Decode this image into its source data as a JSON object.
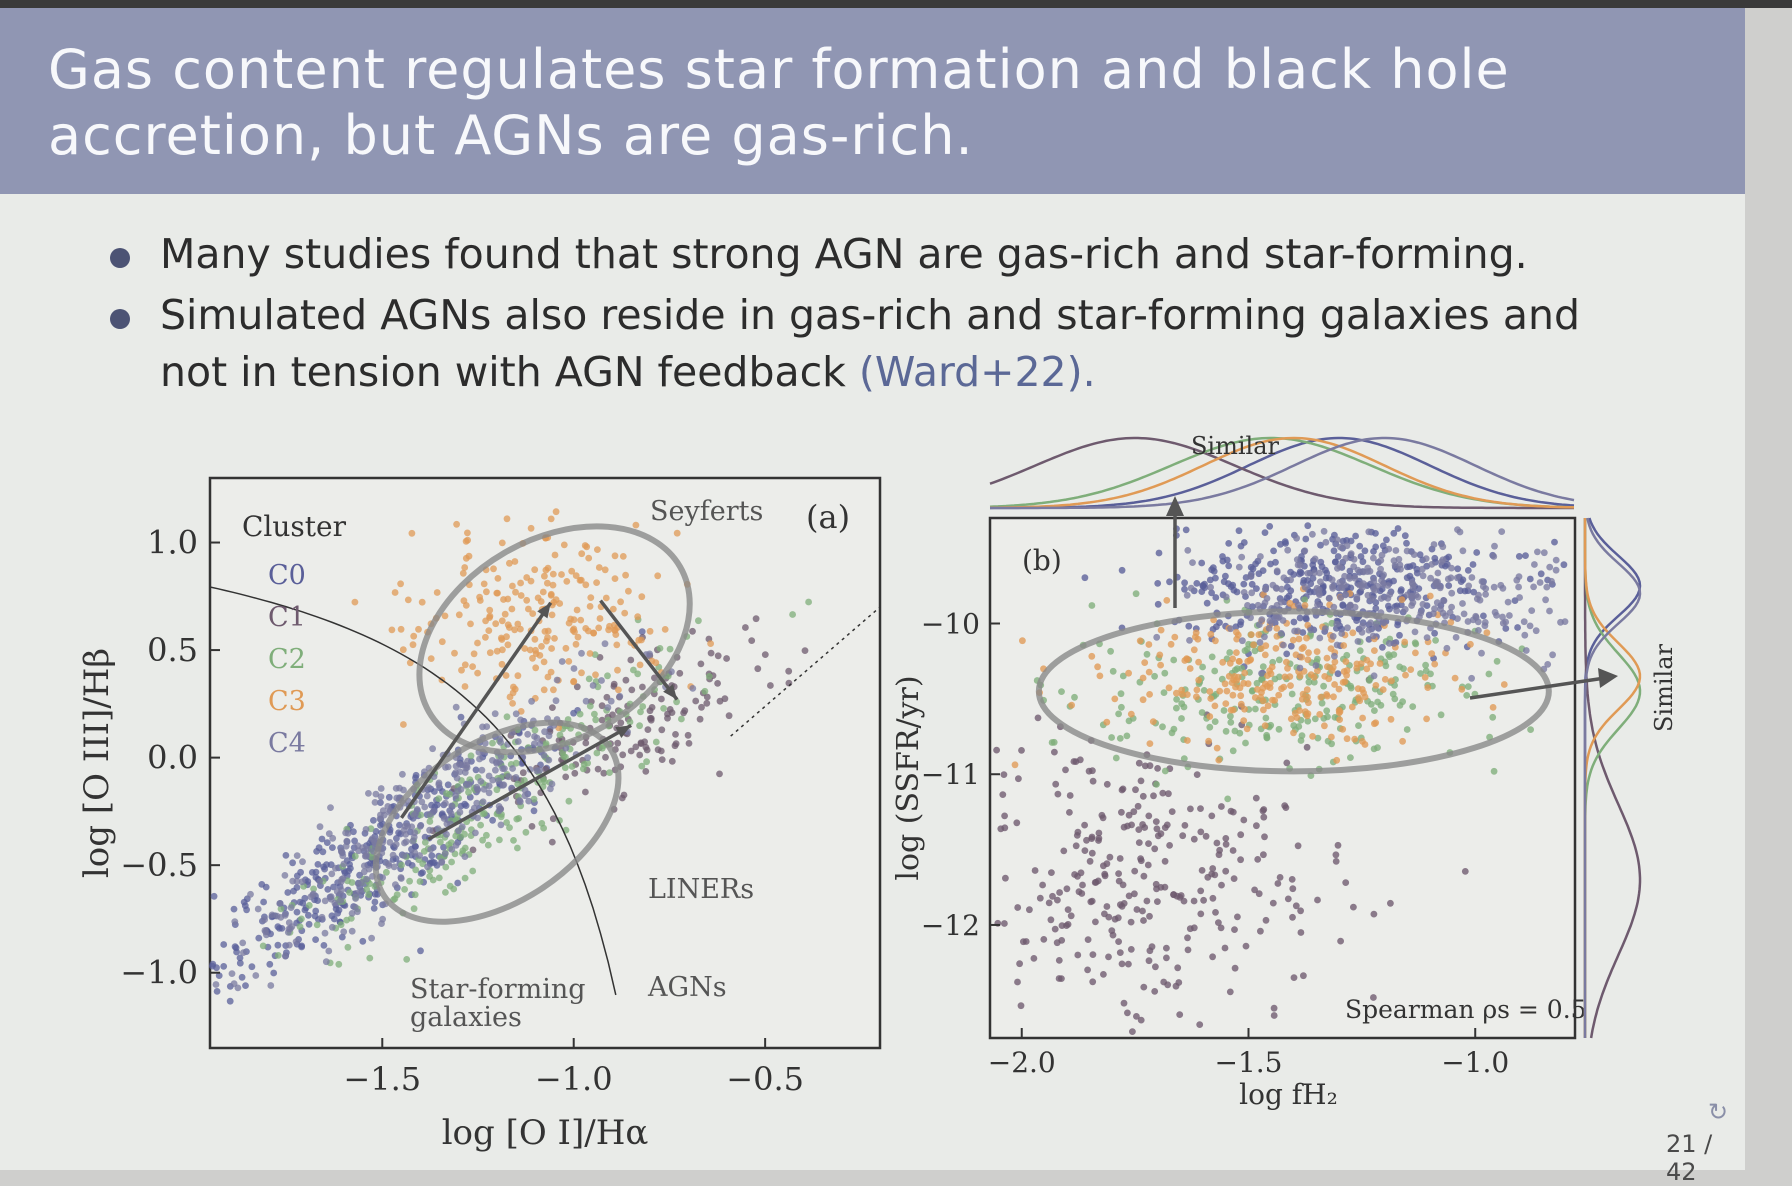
{
  "slide": {
    "title_lines": [
      "Gas content regulates star formation and black hole",
      "accretion, but AGNs are gas-rich."
    ],
    "bullets": [
      {
        "lines": [
          "Many studies found that strong AGN are gas-rich and star-forming."
        ],
        "cite": ""
      },
      {
        "lines": [
          "Simulated AGNs also reside in gas-rich and star-forming galaxies and",
          "not in tension with AGN feedback "
        ],
        "cite": "(Ward+22)."
      }
    ],
    "page_number": "21 / 42",
    "nav_icon": "loop-arrow-icon"
  },
  "colors": {
    "title_band": "#9096b3",
    "slide_bg": "#e9ebe8",
    "C0": "#5a5f99",
    "C1": "#6e5a6e",
    "C2": "#7fae7a",
    "C3": "#e09a55",
    "C4": "#7a7aa0",
    "ellipse": "#8a8a8a",
    "arrow": "#555555"
  },
  "chart_data": [
    {
      "type": "scatter",
      "panel_label": "(a)",
      "xlabel": "log [O I]/Hα",
      "ylabel": "log [O III]/Hβ",
      "xlim": [
        -1.95,
        -0.2
      ],
      "ylim": [
        -1.35,
        1.3
      ],
      "xticks": [
        -1.5,
        -1.0,
        -0.5
      ],
      "xtick_labels": [
        "−1.5",
        "−1.0",
        "−0.5"
      ],
      "yticks": [
        1.0,
        0.5,
        0.0,
        -0.5,
        -1.0
      ],
      "ytick_labels": [
        "1.0",
        "0.5",
        "0.0",
        "−0.5",
        "−1.0"
      ],
      "legend": {
        "title": "Cluster",
        "entries": [
          "C0",
          "C1",
          "C2",
          "C3",
          "C4"
        ],
        "placement": "top-left"
      },
      "region_labels": [
        "Seyferts",
        "LINERs",
        "Star-forming galaxies",
        "AGNs"
      ],
      "series": [
        {
          "name": "C0",
          "center": [
            -1.55,
            -0.5
          ],
          "spread": [
            0.22,
            0.22
          ]
        },
        {
          "name": "C1",
          "center": [
            -0.85,
            0.15
          ],
          "spread": [
            0.18,
            0.2
          ]
        },
        {
          "name": "C2",
          "center": [
            -1.2,
            -0.2
          ],
          "spread": [
            0.25,
            0.25
          ]
        },
        {
          "name": "C3",
          "center": [
            -1.1,
            0.65
          ],
          "spread": [
            0.17,
            0.2
          ]
        },
        {
          "name": "C4",
          "center": [
            -1.4,
            -0.3
          ],
          "spread": [
            0.25,
            0.25
          ]
        }
      ]
    },
    {
      "type": "scatter",
      "panel_label": "(b)",
      "xlabel": "log fH₂",
      "ylabel": "log (SSFR/yr)",
      "xlim": [
        -2.07,
        -0.78
      ],
      "ylim": [
        -12.75,
        -9.3
      ],
      "xticks": [
        -2.0,
        -1.5,
        -1.0
      ],
      "xtick_labels": [
        "−2.0",
        "−1.5",
        "−1.0"
      ],
      "yticks": [
        -10,
        -11,
        -12
      ],
      "ytick_labels": [
        "−10",
        "−11",
        "−12"
      ],
      "annotations": [
        "Similar",
        "Similar",
        "Spearman ρs = 0.5"
      ],
      "series": [
        {
          "name": "C0",
          "center": [
            -1.3,
            -9.75
          ],
          "spread": [
            0.2,
            0.2
          ]
        },
        {
          "name": "C1",
          "center": [
            -1.75,
            -11.7
          ],
          "spread": [
            0.22,
            0.5
          ]
        },
        {
          "name": "C2",
          "center": [
            -1.45,
            -10.45
          ],
          "spread": [
            0.22,
            0.25
          ]
        },
        {
          "name": "C3",
          "center": [
            -1.4,
            -10.35
          ],
          "spread": [
            0.2,
            0.22
          ]
        },
        {
          "name": "C4",
          "center": [
            -1.2,
            -9.8
          ],
          "spread": [
            0.2,
            0.2
          ]
        }
      ]
    }
  ]
}
